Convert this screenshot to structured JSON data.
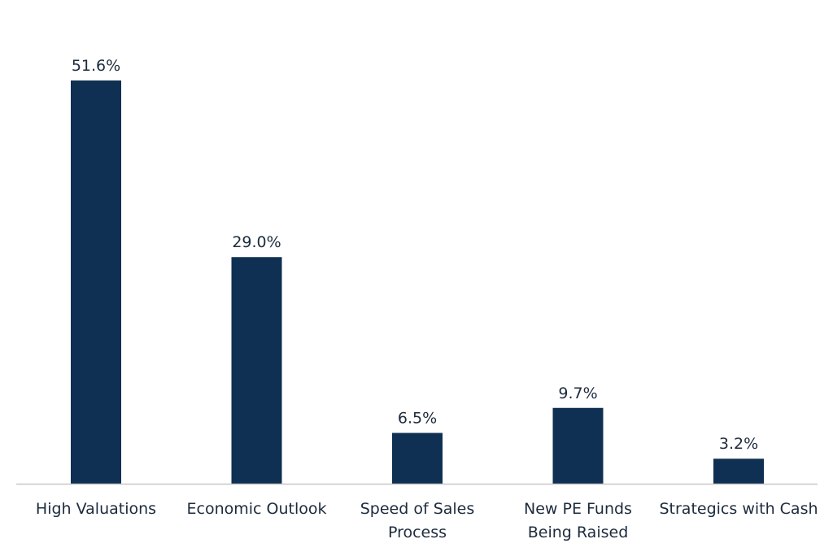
{
  "chart_data": {
    "type": "bar",
    "title": "",
    "xlabel": "",
    "ylabel": "",
    "categories": [
      [
        "High Valuations"
      ],
      [
        "Economic Outlook"
      ],
      [
        "Speed of Sales",
        "Process"
      ],
      [
        "New PE Funds",
        "Being Raised"
      ],
      [
        "Strategics with Cash"
      ]
    ],
    "values": [
      51.6,
      29.0,
      6.5,
      9.7,
      3.2
    ],
    "value_labels": [
      "51.6%",
      "29.0%",
      "6.5%",
      "9.7%",
      "3.2%"
    ],
    "unit": "%",
    "ylim": [
      0,
      51.6
    ],
    "grid": false,
    "legend": "none",
    "colors": {
      "bar": "#0f3052",
      "axis": "#c8c8c8",
      "text": "#1c2b3d"
    }
  }
}
